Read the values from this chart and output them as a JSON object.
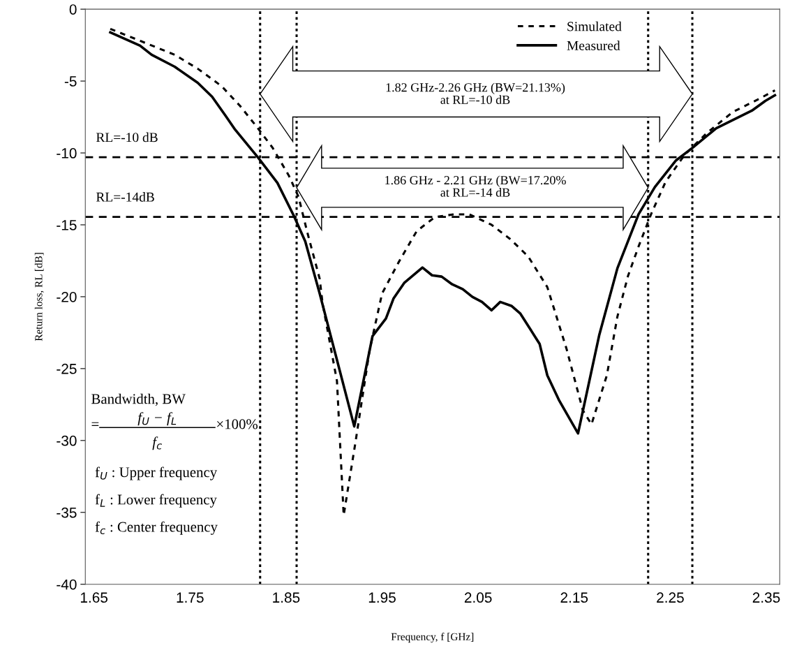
{
  "chart_data": {
    "type": "line",
    "xlabel": "Frequency, f [GHz]",
    "ylabel": "Return loss, RL [dB]",
    "xlim": [
      1.641,
      2.364
    ],
    "xticks": [
      1.65,
      1.75,
      1.85,
      1.95,
      2.05,
      2.15,
      2.25,
      2.35
    ],
    "ylim": [
      -40,
      0
    ],
    "yticks": [
      0,
      -5,
      -10,
      -15,
      -20,
      -25,
      -30,
      -35,
      -40
    ],
    "grid": false,
    "legend": "top right",
    "marker": "none",
    "series": [
      {
        "name": "Simulated",
        "color": "#000000",
        "line_style": "dashed",
        "x": [
          1.667,
          1.698,
          1.734,
          1.758,
          1.783,
          1.802,
          1.819,
          1.836,
          1.853,
          1.863,
          1.872,
          1.885,
          1.888,
          1.903,
          1.91,
          1.922,
          1.937,
          1.95,
          1.967,
          1.986,
          2.005,
          2.025,
          2.041,
          2.064,
          2.083,
          2.102,
          2.122,
          2.142,
          2.159,
          2.168,
          2.184,
          2.195,
          2.206,
          2.217,
          2.23,
          2.245,
          2.265,
          2.288,
          2.315,
          2.341,
          2.359
        ],
        "values": [
          -1.37,
          -2.2,
          -3.17,
          -4.14,
          -5.36,
          -6.72,
          -8.14,
          -9.64,
          -11.59,
          -13.05,
          -15.49,
          -18.75,
          -20.45,
          -25.86,
          -35.2,
          -30.24,
          -23.71,
          -19.77,
          -17.63,
          -15.44,
          -14.46,
          -14.27,
          -14.27,
          -15.0,
          -15.97,
          -17.19,
          -19.33,
          -23.62,
          -27.9,
          -28.88,
          -25.47,
          -21.38,
          -18.56,
          -16.51,
          -14.27,
          -12.03,
          -10.13,
          -8.62,
          -7.16,
          -6.29,
          -5.65
        ]
      },
      {
        "name": "Measured",
        "color": "#000000",
        "line_style": "solid",
        "x": [
          1.667,
          1.698,
          1.71,
          1.734,
          1.758,
          1.773,
          1.787,
          1.797,
          1.821,
          1.841,
          1.858,
          1.87,
          1.885,
          1.921,
          1.94,
          1.954,
          1.962,
          1.973,
          1.992,
          2.002,
          2.012,
          2.023,
          2.034,
          2.044,
          2.054,
          2.064,
          2.073,
          2.085,
          2.094,
          2.114,
          2.122,
          2.134,
          2.154,
          2.176,
          2.195,
          2.217,
          2.234,
          2.256,
          2.273,
          2.298,
          2.335,
          2.349,
          2.359
        ],
        "values": [
          -1.61,
          -2.54,
          -3.17,
          -4.0,
          -5.12,
          -6.09,
          -7.41,
          -8.38,
          -10.33,
          -12.08,
          -14.36,
          -16.16,
          -19.77,
          -29.02,
          -22.74,
          -21.52,
          -20.11,
          -19.04,
          -17.97,
          -18.51,
          -18.6,
          -19.14,
          -19.48,
          -20.01,
          -20.36,
          -20.94,
          -20.36,
          -20.65,
          -21.18,
          -23.28,
          -25.47,
          -27.17,
          -29.51,
          -22.69,
          -18.02,
          -14.27,
          -12.37,
          -10.52,
          -9.65,
          -8.28,
          -7.06,
          -6.38,
          -5.99
        ]
      }
    ],
    "ref_lines": [
      {
        "axis": "y",
        "value": -10.3,
        "label": "RL=-10 dB",
        "line_style": "dashed"
      },
      {
        "axis": "y",
        "value": -14.45,
        "label": "RL=-14dB",
        "line_style": "dashed"
      },
      {
        "axis": "x",
        "value": 1.823,
        "line_style": "dotted"
      },
      {
        "axis": "x",
        "value": 1.861,
        "line_style": "dotted"
      },
      {
        "axis": "x",
        "value": 2.227,
        "line_style": "dotted"
      },
      {
        "axis": "x",
        "value": 2.273,
        "line_style": "dotted"
      }
    ],
    "annotations": [
      "1.82 GHz-2.26 GHz (BW=21.13%)\nat RL=-10 dB",
      "1.86 GHz - 2.21 GHz (BW=17.20%\nat RL=-14 dB",
      "Bandwidth, BW",
      "=",
      "f$_{U}$ − f$_{L}$",
      "f$_{c}$",
      "×100%",
      "f$_{U}$ : Upper frequency",
      "f$_{L}$ : Lower frequency",
      "f$_{c}$ : Center frequency"
    ]
  }
}
